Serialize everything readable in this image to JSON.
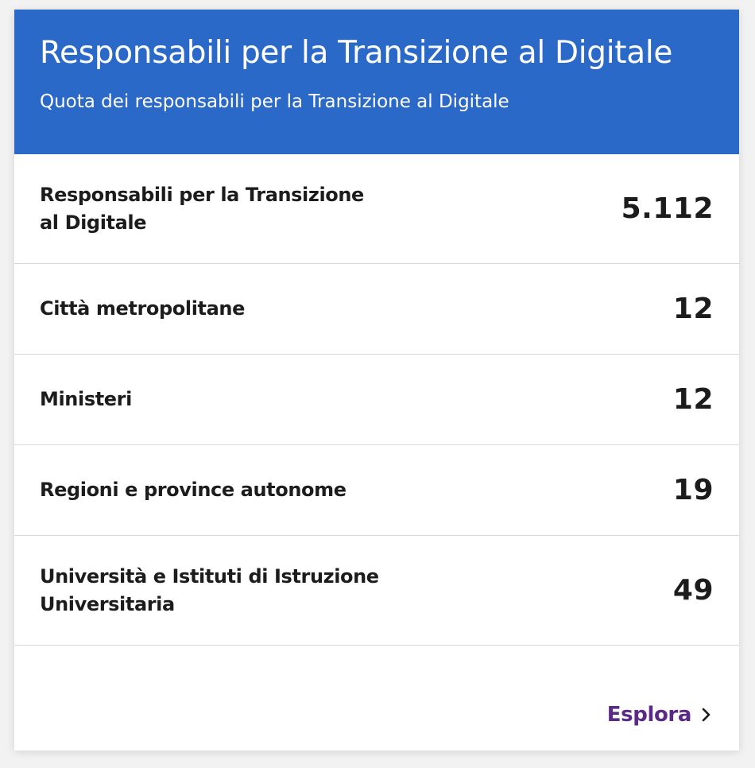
{
  "header": {
    "title": "Responsabili per la Transizione al Digitale",
    "subtitle": "Quota dei responsabili per la Transizione al Digitale"
  },
  "rows": [
    {
      "label": "Responsabili per la Transizione al Digitale",
      "value": "5.112"
    },
    {
      "label": "Città metropolitane",
      "value": "12"
    },
    {
      "label": "Ministeri",
      "value": "12"
    },
    {
      "label": "Regioni e province autonome",
      "value": "19"
    },
    {
      "label": "Università e Istituti di Istruzione Universitaria",
      "value": "49"
    }
  ],
  "footer": {
    "explore_label": "Esplora",
    "explore_icon": "chevron-right-icon"
  },
  "colors": {
    "header_bg": "#2a69c8",
    "link": "#5a2a86",
    "text": "#1c1c1c",
    "divider": "#d9d9d9"
  }
}
